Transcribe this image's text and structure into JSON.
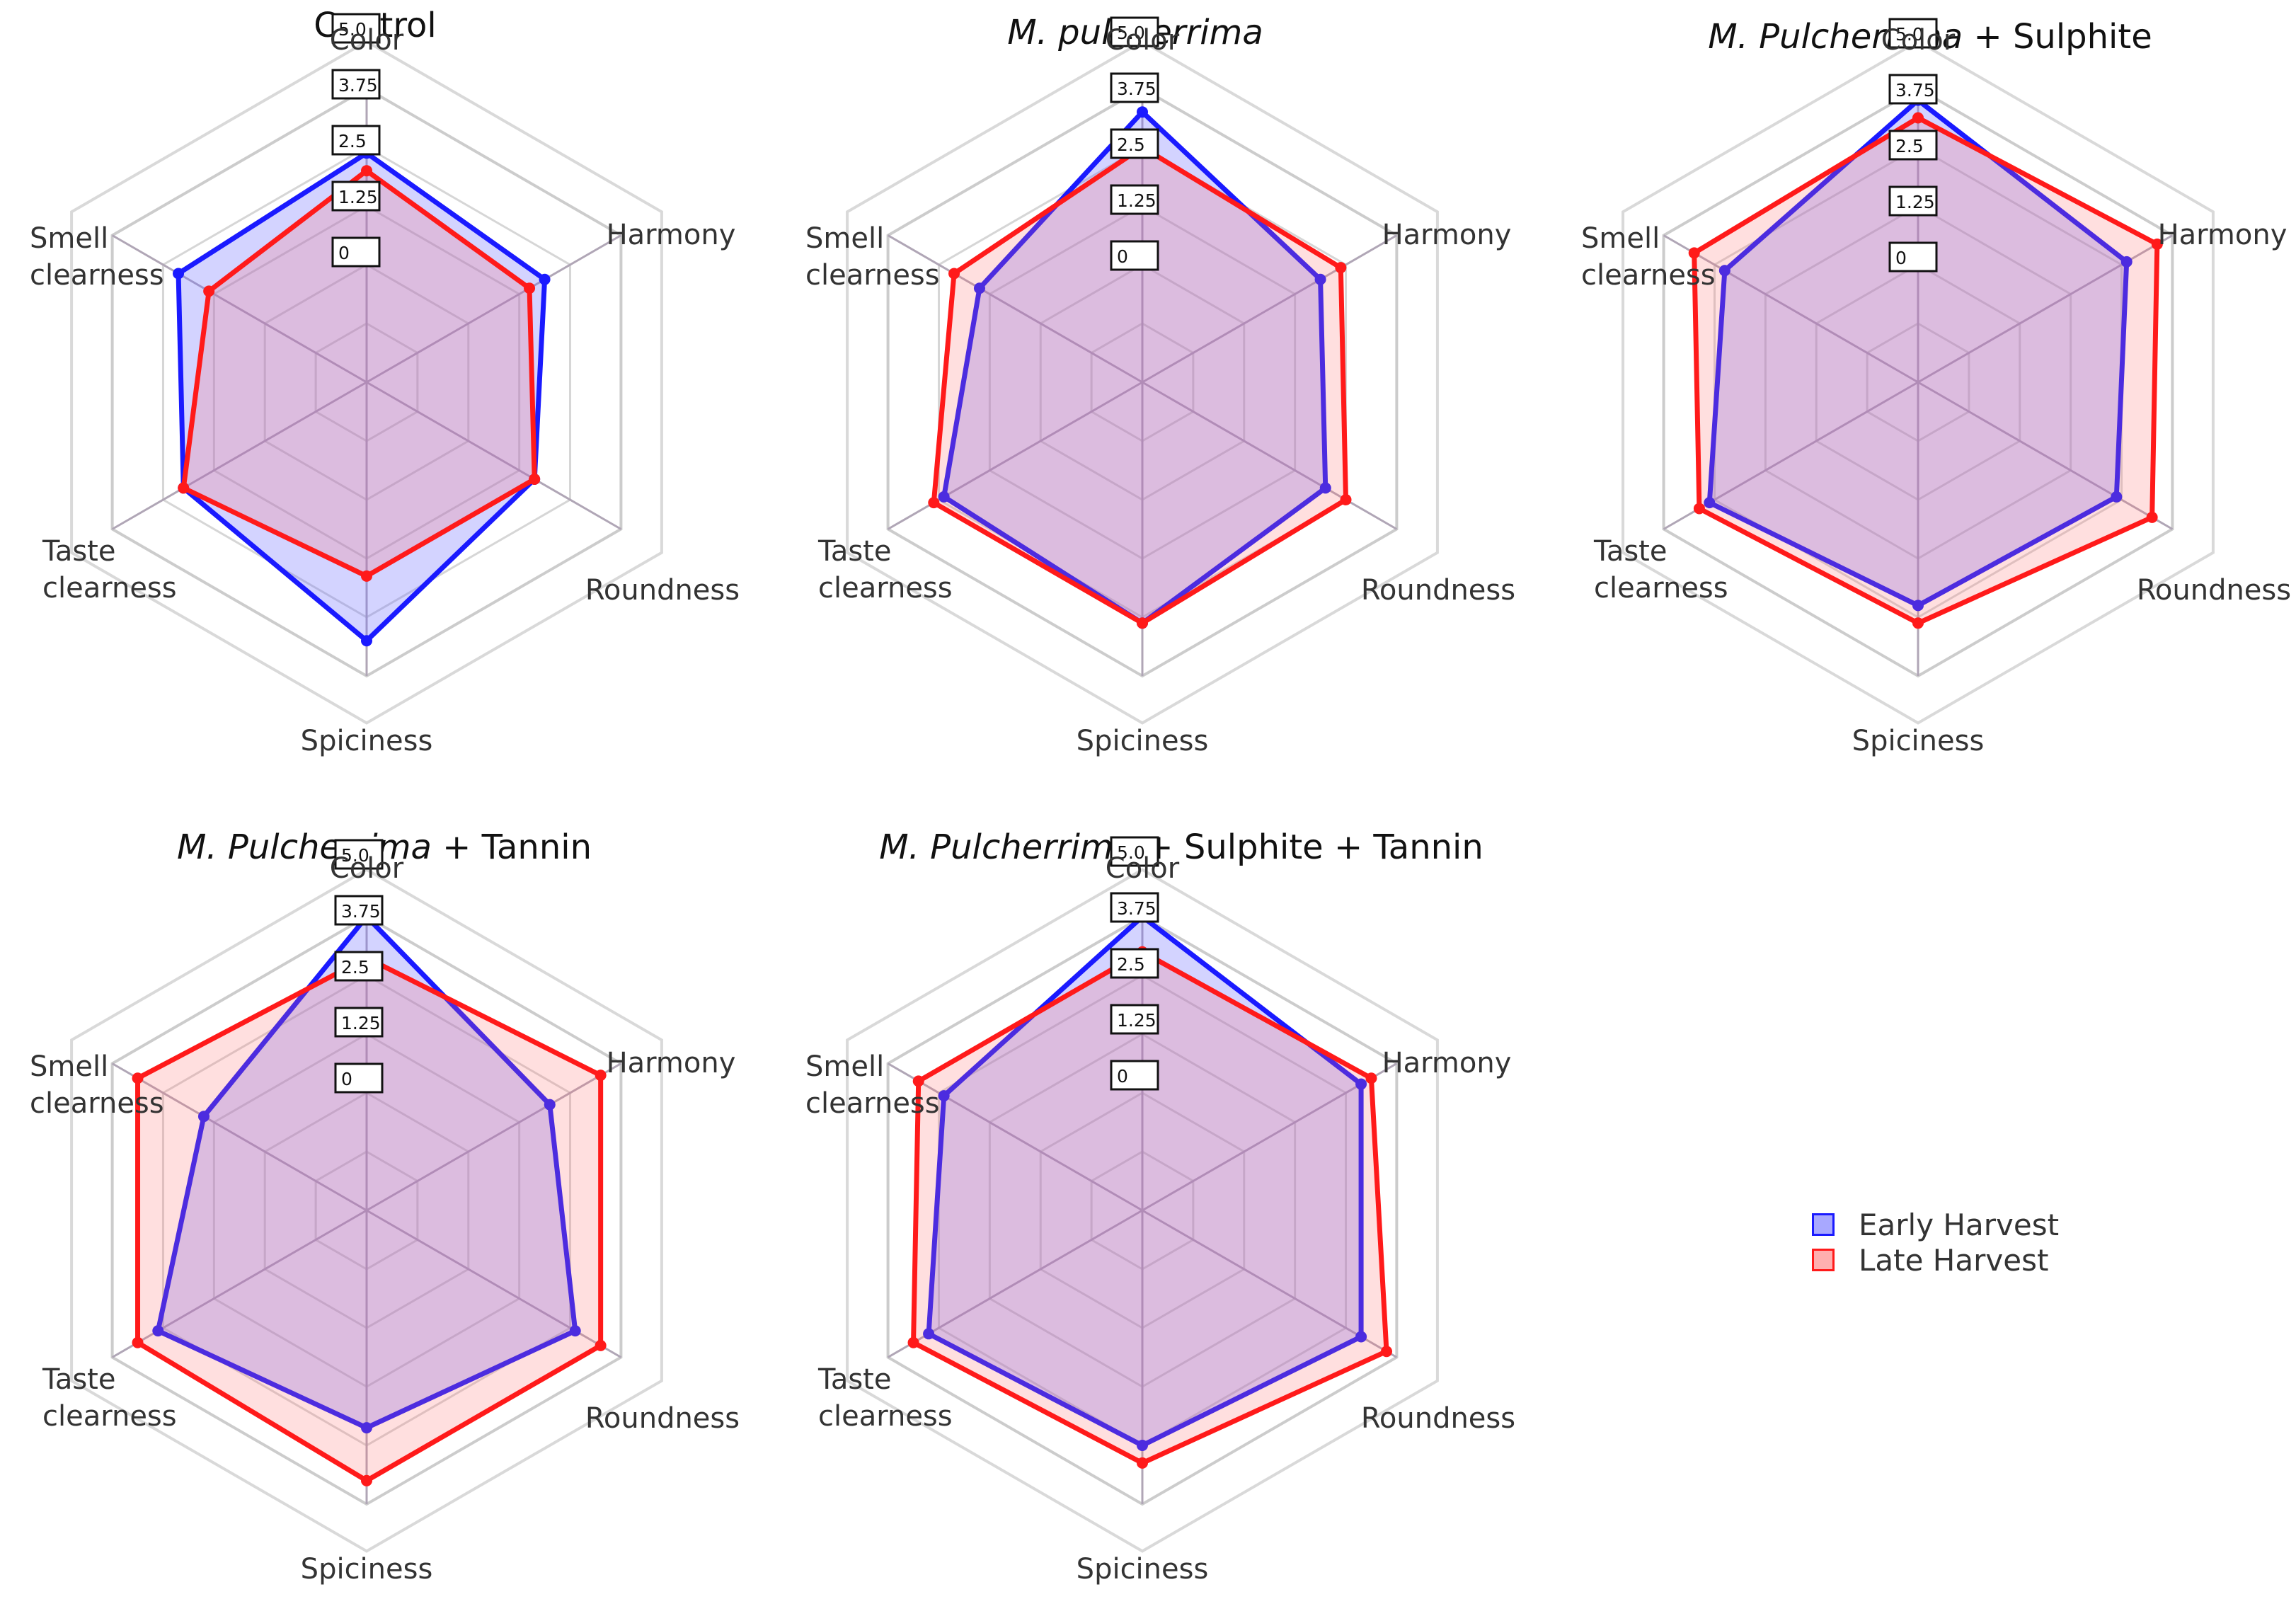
{
  "colors": {
    "early": "#1a1aff",
    "early_fill": "rgba(110,110,255,0.30)",
    "late": "#ff1a1a",
    "late_fill": "rgba(255,110,110,0.22)",
    "grid": "#cccccc",
    "spoke": "#b0a6b6"
  },
  "legend": {
    "early_label": "Early Harvest",
    "late_label": "Late Harvest"
  },
  "chart_data": [
    {
      "type": "radar",
      "title_italic": "",
      "title_rest": "Control",
      "axes": [
        "Color",
        "Harmony",
        "Roundness",
        "Spiciness",
        "Taste clearness",
        "Smell clearness"
      ],
      "axis_lines": [
        [
          "Color"
        ],
        [
          "Harmony"
        ],
        [
          "Roundness"
        ],
        [
          "Spiciness"
        ],
        [
          "Taste",
          "clearness"
        ],
        [
          "Smell",
          "clearness"
        ]
      ],
      "scale_labels": [
        "5.0",
        "3.75",
        "2.5",
        "1.25",
        "0"
      ],
      "rmax": 5,
      "series": [
        {
          "name": "Early Harvest",
          "values": [
            3.9,
            3.5,
            3.3,
            4.4,
            3.6,
            3.7
          ]
        },
        {
          "name": "Late Harvest",
          "values": [
            3.6,
            3.2,
            3.3,
            3.3,
            3.6,
            3.1
          ]
        }
      ]
    },
    {
      "type": "radar",
      "title_italic": "M. pulcherrima",
      "title_rest": "",
      "axes": [
        "Color",
        "Harmony",
        "Roundness",
        "Spiciness",
        "Taste clearness",
        "Smell clearness"
      ],
      "axis_lines": [
        [
          "Color"
        ],
        [
          "Harmony"
        ],
        [
          "Roundness"
        ],
        [
          "Spiciness"
        ],
        [
          "Taste",
          "clearness"
        ],
        [
          "Smell",
          "clearness"
        ]
      ],
      "scale_labels": [
        "5.0",
        "3.75",
        "2.5",
        "1.25",
        "0"
      ],
      "rmax": 5,
      "series": [
        {
          "name": "Early Harvest",
          "values": [
            4.6,
            3.5,
            3.6,
            4.1,
            3.9,
            3.2
          ]
        },
        {
          "name": "Late Harvest",
          "values": [
            4.0,
            3.9,
            4.0,
            4.1,
            4.1,
            3.7
          ]
        }
      ]
    },
    {
      "type": "radar",
      "title_italic": "M. Pulcherrima",
      "title_rest": " + Sulphite",
      "axes": [
        "Color",
        "Harmony",
        "Roundness",
        "Spiciness",
        "Taste clearness",
        "Smell clearness"
      ],
      "axis_lines": [
        [
          "Color"
        ],
        [
          "Harmony"
        ],
        [
          "Roundness"
        ],
        [
          "Spiciness"
        ],
        [
          "Taste",
          "clearness"
        ],
        [
          "Smell",
          "clearness"
        ]
      ],
      "scale_labels": [
        "5.0",
        "3.75",
        "2.5",
        "1.25",
        "0"
      ],
      "rmax": 5,
      "series": [
        {
          "name": "Early Harvest",
          "values": [
            4.8,
            4.1,
            3.9,
            3.8,
            4.1,
            3.8
          ]
        },
        {
          "name": "Late Harvest",
          "values": [
            4.5,
            4.7,
            4.6,
            4.1,
            4.3,
            4.4
          ]
        }
      ]
    },
    {
      "type": "radar",
      "title_italic": "M. Pulcherrima",
      "title_rest": " + Tannin",
      "axes": [
        "Color",
        "Harmony",
        "Roundness",
        "Spiciness",
        "Taste clearness",
        "Smell clearness"
      ],
      "axis_lines": [
        [
          "Color"
        ],
        [
          "Harmony"
        ],
        [
          "Roundness"
        ],
        [
          "Spiciness"
        ],
        [
          "Taste",
          "clearness"
        ],
        [
          "Smell",
          "clearness"
        ]
      ],
      "scale_labels": [
        "5.0",
        "3.75",
        "2.5",
        "1.25",
        "0"
      ],
      "rmax": 5,
      "series": [
        {
          "name": "Early Harvest",
          "values": [
            5.0,
            3.6,
            4.1,
            3.7,
            4.1,
            3.2
          ]
        },
        {
          "name": "Late Harvest",
          "values": [
            4.3,
            4.6,
            4.6,
            4.6,
            4.5,
            4.5
          ]
        }
      ]
    },
    {
      "type": "radar",
      "title_italic": "M. Pulcherrima",
      "title_rest": " + Sulphite + Tannin",
      "axes": [
        "Color",
        "Harmony",
        "Roundness",
        "Spiciness",
        "Taste clearness",
        "Smell clearness"
      ],
      "axis_lines": [
        [
          "Color"
        ],
        [
          "Harmony"
        ],
        [
          "Roundness"
        ],
        [
          "Spiciness"
        ],
        [
          "Taste",
          "clearness"
        ],
        [
          "Smell",
          "clearness"
        ]
      ],
      "scale_labels": [
        "5.0",
        "3.75",
        "2.5",
        "1.25",
        "0"
      ],
      "rmax": 5,
      "series": [
        {
          "name": "Early Harvest",
          "values": [
            5.0,
            4.3,
            4.3,
            4.0,
            4.2,
            3.9
          ]
        },
        {
          "name": "Late Harvest",
          "values": [
            4.4,
            4.5,
            4.8,
            4.3,
            4.5,
            4.4
          ]
        }
      ]
    }
  ]
}
